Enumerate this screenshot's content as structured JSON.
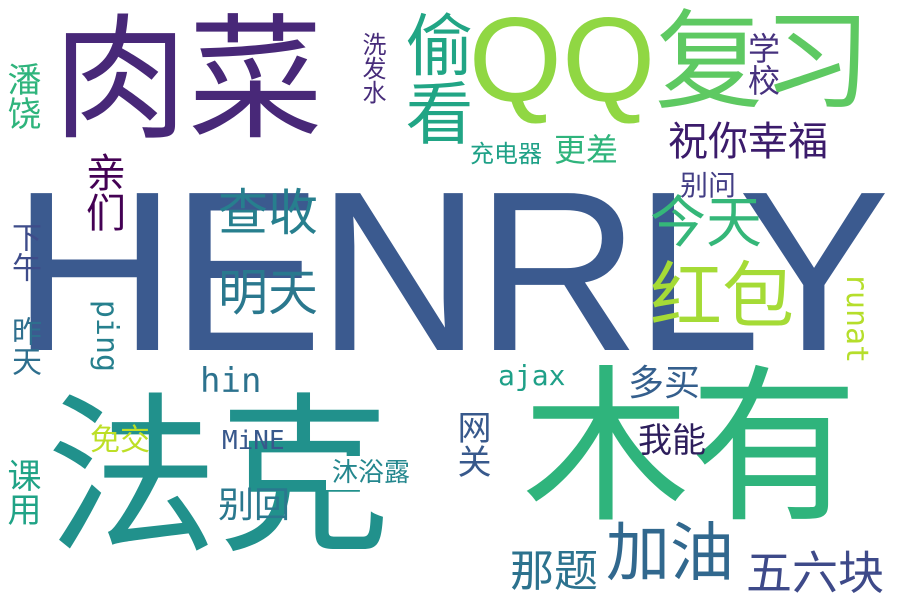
{
  "words": [
    {
      "text": "HENRLY",
      "color": "#3b5a8f"
    },
    {
      "text": "肉菜",
      "color": "#482878"
    },
    {
      "text": "QQ",
      "color": "#90d743"
    },
    {
      "text": "复习",
      "color": "#5ec962"
    },
    {
      "text": "法克",
      "color": "#21918c"
    },
    {
      "text": "木有",
      "color": "#2fb47c"
    },
    {
      "text": "偷看",
      "color": "#21a585"
    },
    {
      "text": "祝你幸福",
      "color": "#3b1b6b"
    },
    {
      "text": "今天",
      "color": "#35b779"
    },
    {
      "text": "红包",
      "color": "#a5db36"
    },
    {
      "text": "查收",
      "color": "#277f8e"
    },
    {
      "text": "明天",
      "color": "#2a788e"
    },
    {
      "text": "加油",
      "color": "#31688e"
    },
    {
      "text": "五六块",
      "color": "#3e4a89"
    },
    {
      "text": "那题",
      "color": "#2c728e"
    },
    {
      "text": "潘饶",
      "color": "#2fb47c"
    },
    {
      "text": "洗发水",
      "color": "#472c7a"
    },
    {
      "text": "学校",
      "color": "#46317e"
    },
    {
      "text": "充电器",
      "color": "#1fa187"
    },
    {
      "text": "更差",
      "color": "#2fb47c"
    },
    {
      "text": "别问",
      "color": "#433e85"
    },
    {
      "text": "亲们",
      "color": "#440154"
    },
    {
      "text": "下午",
      "color": "#3e4c8a"
    },
    {
      "text": "昨天",
      "color": "#2e6f8e"
    },
    {
      "text": "ping",
      "color": "#27808e"
    },
    {
      "text": "runat",
      "color": "#b5de2b"
    },
    {
      "text": "hin",
      "color": "#2c728e"
    },
    {
      "text": "ajax",
      "color": "#1fa088"
    },
    {
      "text": "多买",
      "color": "#355f8d"
    },
    {
      "text": "网关",
      "color": "#38598c"
    },
    {
      "text": "免交",
      "color": "#bddf26"
    },
    {
      "text": "MiNE",
      "color": "#38588c"
    },
    {
      "text": "我能",
      "color": "#2d1e5c"
    },
    {
      "text": "沐浴露",
      "color": "#24878e"
    },
    {
      "text": "别回",
      "color": "#2a788e"
    },
    {
      "text": "课用",
      "color": "#20a386"
    }
  ]
}
